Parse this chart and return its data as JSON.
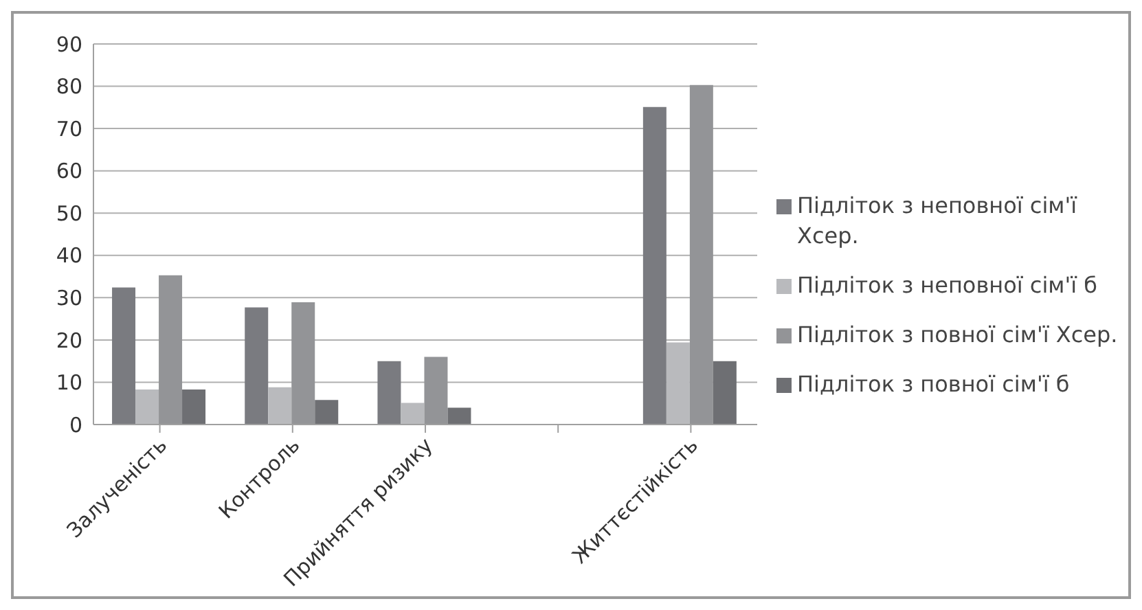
{
  "chart_data": {
    "type": "bar",
    "categories": [
      "Залученість",
      "Контроль",
      "Прийняття ризику",
      null,
      "Життєстійкість"
    ],
    "series": [
      {
        "name": "Підліток з неповної сім'ї Хсер.",
        "color": "#7a7b80",
        "values": [
          32.4,
          27.7,
          15,
          null,
          75.1
        ]
      },
      {
        "name": "Підліток з неповної сім'ї б",
        "color": "#b9babd",
        "values": [
          8.3,
          8.8,
          5.1,
          null,
          19.4
        ]
      },
      {
        "name": "Підліток з повної сім'ї Хсер.",
        "color": "#939497",
        "values": [
          35.3,
          28.9,
          16,
          null,
          80.3
        ]
      },
      {
        "name": "Підліток з повної сім'ї б",
        "color": "#6e6f73",
        "values": [
          8.3,
          5.8,
          4,
          null,
          15
        ]
      }
    ],
    "ylim": [
      0,
      90
    ],
    "yticks": [
      0,
      10,
      20,
      30,
      40,
      50,
      60,
      70,
      80,
      90
    ],
    "grid": "y",
    "legend": "right"
  }
}
